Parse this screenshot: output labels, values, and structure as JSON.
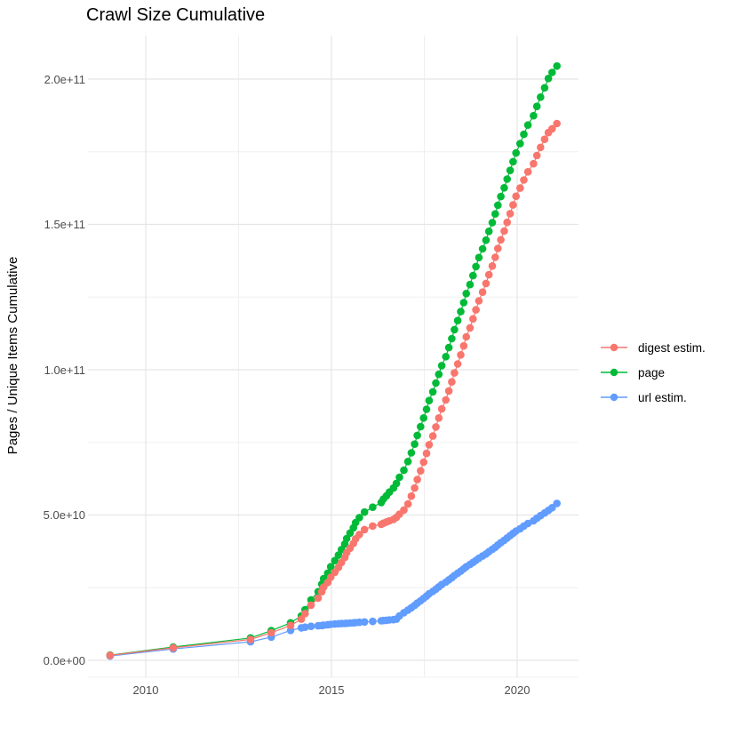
{
  "chart_data": {
    "type": "line",
    "title": "Crawl Size Cumulative",
    "ylabel": "Pages / Unique Items Cumulative",
    "xlabel": "",
    "legend_position": "right",
    "grid": true,
    "value_unit": "billions (1e9)",
    "xlim_years": [
      2008.45,
      2021.65
    ],
    "ylim_billions": [
      0,
      214
    ],
    "x_ticks": [
      {
        "label": "2010",
        "year": 2010
      },
      {
        "label": "2015",
        "year": 2015
      },
      {
        "label": "2020",
        "year": 2020
      }
    ],
    "y_ticks": [
      {
        "label": "0.0e+00",
        "value": 0
      },
      {
        "label": "5.0e+10",
        "value": 50
      },
      {
        "label": "1.0e+11",
        "value": 100
      },
      {
        "label": "1.5e+11",
        "value": 150
      },
      {
        "label": "2.0e+11",
        "value": 200
      }
    ],
    "x_years": [
      2009.04,
      2010.74,
      2012.82,
      2013.38,
      2013.9,
      2014.19,
      2014.29,
      2014.45,
      2014.64,
      2014.74,
      2014.79,
      2014.9,
      2014.98,
      2015.09,
      2015.19,
      2015.27,
      2015.36,
      2015.41,
      2015.5,
      2015.59,
      2015.65,
      2015.75,
      2015.89,
      2016.11,
      2016.34,
      2016.4,
      2016.48,
      2016.56,
      2016.67,
      2016.75,
      2016.83,
      2016.95,
      2017.06,
      2017.15,
      2017.24,
      2017.31,
      2017.4,
      2017.48,
      2017.56,
      2017.63,
      2017.73,
      2017.81,
      2017.89,
      2017.97,
      2018.08,
      2018.16,
      2018.24,
      2018.31,
      2018.4,
      2018.48,
      2018.56,
      2018.63,
      2018.73,
      2018.81,
      2018.89,
      2018.97,
      2019.07,
      2019.16,
      2019.24,
      2019.33,
      2019.41,
      2019.48,
      2019.56,
      2019.65,
      2019.73,
      2019.81,
      2019.89,
      2019.97,
      2020.08,
      2020.18,
      2020.29,
      2020.44,
      2020.53,
      2020.63,
      2020.74,
      2020.84,
      2020.94,
      2021.07
    ],
    "series": [
      {
        "name": "digest estim.",
        "color": "#F8766D",
        "values": [
          1.7,
          4.3,
          7.2,
          9.5,
          12,
          14.2,
          16.1,
          19,
          21.4,
          23.6,
          25.2,
          26.8,
          28.6,
          30.3,
          32,
          33.7,
          35.4,
          37,
          38.6,
          40.2,
          41.8,
          43.3,
          45,
          46.2,
          46.8,
          47.2,
          47.6,
          48,
          48.5,
          49.2,
          50.3,
          51.7,
          53.8,
          56.5,
          59.3,
          62.2,
          65.2,
          68.2,
          71.2,
          74.2,
          77.2,
          80.3,
          83.4,
          86.5,
          89.6,
          92.7,
          95.8,
          98.9,
          102,
          105.1,
          108.2,
          111.3,
          114.4,
          117.5,
          120.6,
          123.7,
          126.7,
          129.7,
          132.7,
          135.7,
          138.7,
          141.7,
          144.7,
          147.7,
          150.7,
          153.7,
          156.7,
          159.7,
          162.5,
          165.3,
          168.1,
          170.9,
          173.7,
          176.5,
          179.3,
          181.6,
          182.9,
          184.7
        ]
      },
      {
        "name": "page",
        "color": "#00BA38",
        "values": [
          1.8,
          4.6,
          7.7,
          10.2,
          12.9,
          15.3,
          17.4,
          20.8,
          23.6,
          26.2,
          28.1,
          30,
          32.2,
          34.3,
          36.2,
          38.1,
          40,
          41.9,
          43.8,
          45.6,
          47.4,
          49.1,
          51,
          52.7,
          54.3,
          55.5,
          56.6,
          57.9,
          59.3,
          60.9,
          63,
          65.4,
          68.4,
          71.4,
          74.4,
          77.4,
          80.4,
          83.4,
          86.4,
          89.4,
          92.4,
          95.4,
          98.4,
          101.4,
          104.5,
          107.6,
          110.7,
          113.8,
          116.9,
          120,
          123.1,
          126.2,
          129.3,
          132.4,
          135.5,
          138.6,
          141.6,
          144.6,
          147.6,
          150.6,
          153.6,
          156.6,
          159.6,
          162.6,
          165.6,
          168.6,
          171.6,
          174.6,
          177.8,
          181,
          184.2,
          187.4,
          190.6,
          193.8,
          197,
          200.2,
          202.3,
          204.5
        ]
      },
      {
        "name": "url estim.",
        "color": "#619CFF",
        "values": [
          1.5,
          3.9,
          6.4,
          8,
          10.3,
          11.2,
          11.4,
          11.7,
          11.9,
          12,
          12.1,
          12.25,
          12.4,
          12.5,
          12.6,
          12.65,
          12.7,
          12.75,
          12.85,
          12.9,
          13,
          13.1,
          13.2,
          13.4,
          13.6,
          13.7,
          13.8,
          13.9,
          14,
          14.2,
          15.3,
          16.4,
          17.3,
          18.1,
          18.9,
          19.7,
          20.5,
          21.3,
          22.1,
          22.9,
          23.7,
          24.5,
          25.3,
          26.1,
          26.9,
          27.7,
          28.4,
          29.2,
          30,
          30.7,
          31.5,
          32.2,
          33,
          33.7,
          34.4,
          35.1,
          35.9,
          36.6,
          37.4,
          38.2,
          38.9,
          39.7,
          40.5,
          41.3,
          42.1,
          42.9,
          43.7,
          44.5,
          45.3,
          46.2,
          47.1,
          48,
          48.9,
          49.8,
          50.7,
          51.6,
          52.5,
          54
        ]
      }
    ],
    "draw_order": [
      1,
      2,
      0
    ]
  }
}
